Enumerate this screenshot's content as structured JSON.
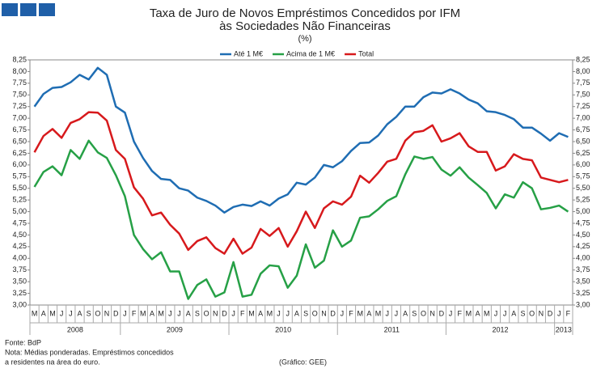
{
  "chart_data": {
    "type": "line",
    "title": "Taxa de Juro de Novos Empréstimos Concedidos por IFM",
    "title_line2": "às Sociedades Não Financeiras",
    "subtitle": "(%)",
    "categories": [
      "M",
      "A",
      "M",
      "J",
      "J",
      "A",
      "S",
      "O",
      "N",
      "D",
      "J",
      "F",
      "M",
      "A",
      "M",
      "J",
      "J",
      "A",
      "S",
      "O",
      "N",
      "D",
      "J",
      "F",
      "M",
      "A",
      "M",
      "J",
      "J",
      "A",
      "S",
      "O",
      "N",
      "D",
      "J",
      "F",
      "M",
      "A",
      "M",
      "J",
      "J",
      "A",
      "S",
      "O",
      "N",
      "D",
      "J",
      "F",
      "M",
      "A",
      "M",
      "J",
      "J",
      "A",
      "S",
      "O",
      "N",
      "D",
      "J",
      "F"
    ],
    "groups": [
      {
        "label": "2008",
        "count": 10
      },
      {
        "label": "2009",
        "count": 12
      },
      {
        "label": "2010",
        "count": 12
      },
      {
        "label": "2011",
        "count": 12
      },
      {
        "label": "2012",
        "count": 12
      },
      {
        "label": "2013",
        "count": 2
      }
    ],
    "series": [
      {
        "name": "Até 1 M€",
        "color": "#1f6db3",
        "values": [
          7.25,
          7.52,
          7.65,
          7.67,
          7.77,
          7.93,
          7.83,
          8.08,
          7.93,
          7.25,
          7.12,
          6.5,
          6.15,
          5.87,
          5.7,
          5.68,
          5.5,
          5.45,
          5.3,
          5.23,
          5.13,
          4.98,
          5.1,
          5.15,
          5.12,
          5.22,
          5.13,
          5.28,
          5.37,
          5.62,
          5.58,
          5.73,
          6.0,
          5.95,
          6.08,
          6.3,
          6.47,
          6.48,
          6.63,
          6.87,
          7.03,
          7.25,
          7.25,
          7.45,
          7.55,
          7.53,
          7.62,
          7.53,
          7.4,
          7.32,
          7.15,
          7.13,
          7.07,
          6.98,
          6.8,
          6.8,
          6.67,
          6.52,
          6.68,
          6.6
        ]
      },
      {
        "name": "Acima de 1 M€",
        "color": "#26a046",
        "values": [
          5.53,
          5.85,
          5.97,
          5.78,
          6.32,
          6.13,
          6.52,
          6.27,
          6.15,
          5.78,
          5.33,
          4.5,
          4.2,
          3.98,
          4.13,
          3.72,
          3.72,
          3.13,
          3.43,
          3.55,
          3.18,
          3.27,
          3.92,
          3.18,
          3.22,
          3.67,
          3.85,
          3.83,
          3.37,
          3.63,
          4.3,
          3.8,
          3.95,
          4.6,
          4.25,
          4.38,
          4.87,
          4.9,
          5.05,
          5.23,
          5.33,
          5.8,
          6.18,
          6.13,
          6.17,
          5.9,
          5.77,
          5.95,
          5.73,
          5.57,
          5.4,
          5.07,
          5.37,
          5.3,
          5.63,
          5.5,
          5.05,
          5.08,
          5.13,
          5.0
        ]
      },
      {
        "name": "Total",
        "color": "#d7191c",
        "values": [
          6.27,
          6.62,
          6.77,
          6.58,
          6.9,
          6.98,
          7.13,
          7.12,
          6.95,
          6.32,
          6.13,
          5.52,
          5.28,
          4.92,
          4.98,
          4.72,
          4.53,
          4.18,
          4.37,
          4.45,
          4.22,
          4.1,
          4.42,
          4.1,
          4.23,
          4.63,
          4.48,
          4.65,
          4.25,
          4.58,
          5.0,
          4.65,
          5.07,
          5.22,
          5.15,
          5.32,
          5.77,
          5.62,
          5.83,
          6.07,
          6.13,
          6.52,
          6.7,
          6.73,
          6.85,
          6.5,
          6.57,
          6.68,
          6.4,
          6.28,
          6.28,
          5.88,
          5.97,
          6.23,
          6.13,
          6.1,
          5.73,
          5.68,
          5.63,
          5.68
        ]
      }
    ],
    "ylim": [
      3.0,
      8.25
    ],
    "yticks": [
      {
        "value": 3.0,
        "label": "3,00"
      },
      {
        "value": 3.25,
        "label": "3,25"
      },
      {
        "value": 3.5,
        "label": "3,50"
      },
      {
        "value": 3.75,
        "label": "3,75"
      },
      {
        "value": 4.0,
        "label": "4,00"
      },
      {
        "value": 4.25,
        "label": "4,25"
      },
      {
        "value": 4.5,
        "label": "4,50"
      },
      {
        "value": 4.75,
        "label": "4,75"
      },
      {
        "value": 5.0,
        "label": "5,00"
      },
      {
        "value": 5.25,
        "label": "5,25"
      },
      {
        "value": 5.5,
        "label": "5,50"
      },
      {
        "value": 5.75,
        "label": "5,75"
      },
      {
        "value": 6.0,
        "label": "6,00"
      },
      {
        "value": 6.25,
        "label": "6,25"
      },
      {
        "value": 6.5,
        "label": "6,50"
      },
      {
        "value": 6.75,
        "label": "6,75"
      },
      {
        "value": 7.0,
        "label": "7,00"
      },
      {
        "value": 7.25,
        "label": "7,25"
      },
      {
        "value": 7.5,
        "label": "7,50"
      },
      {
        "value": 7.75,
        "label": "7,75"
      },
      {
        "value": 8.0,
        "label": "8,00"
      },
      {
        "value": 8.25,
        "label": "8,25"
      }
    ],
    "grid": false,
    "legend": "top",
    "source": "Fonte: BdP",
    "note_line1": "Nota: Médias ponderadas. Empréstimos concedidos",
    "note_line2": "a residentes na área do euro.",
    "credit": "(Gráfico: GEE)"
  }
}
